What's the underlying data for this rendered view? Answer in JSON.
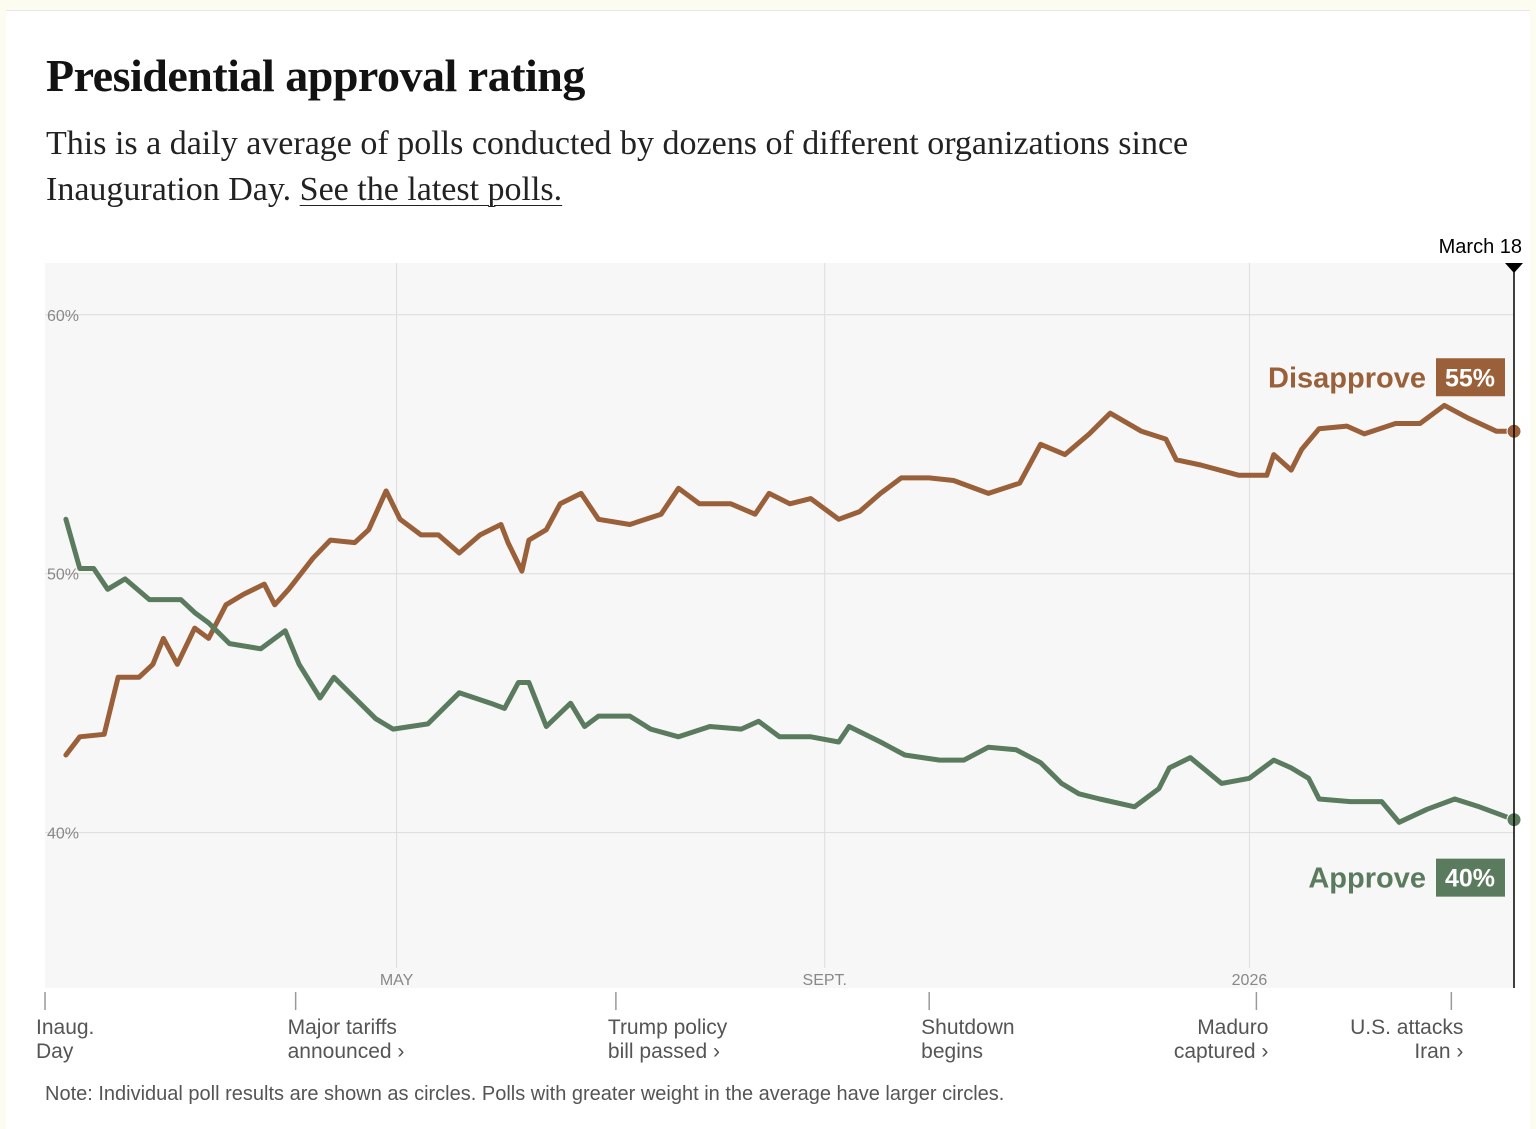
{
  "chart_data": {
    "type": "line",
    "title": "Presidential approval rating",
    "subtitle": "This is a daily average of polls conducted by dozens of different organizations since Inauguration Day.",
    "subtitle_link": "See the latest polls.",
    "note": "Note: Individual poll results are shown as circles. Polls with greater weight in the average have larger circles.",
    "xlim": [
      0,
      422
    ],
    "xticks": [
      {
        "value": 101,
        "label": "MAY"
      },
      {
        "value": 224,
        "label": "SEPT."
      },
      {
        "value": 346,
        "label": "2026"
      }
    ],
    "ylim": [
      34,
      62
    ],
    "yticks": [
      {
        "value": 40,
        "label": "40%"
      },
      {
        "value": 50,
        "label": "50%"
      },
      {
        "value": 60,
        "label": "60%"
      }
    ],
    "grid": true,
    "cursor": {
      "x": 422,
      "label": "March 18"
    },
    "annotations": [
      {
        "x": 0,
        "label": [
          "Inaug.",
          "Day"
        ]
      },
      {
        "x": 72,
        "label": [
          "Major tariffs",
          "announced ›"
        ]
      },
      {
        "x": 164,
        "label": [
          "Trump policy",
          "bill passed ›"
        ]
      },
      {
        "x": 254,
        "label": [
          "Shutdown",
          "begins"
        ]
      },
      {
        "x": 348,
        "label": [
          "Maduro",
          "captured ›"
        ]
      },
      {
        "x": 404,
        "label": [
          "U.S. attacks",
          "Iran ›"
        ]
      }
    ],
    "series": [
      {
        "name": "Disapprove",
        "color": "#99603a",
        "end_label": {
          "value": 55,
          "label": "55%"
        },
        "x": [
          6,
          10,
          17,
          21,
          27,
          31,
          34,
          38,
          43,
          47,
          52,
          57,
          63,
          66,
          70,
          77,
          82,
          89,
          93,
          98,
          102,
          108,
          113,
          119,
          125,
          131,
          133,
          137,
          139,
          144,
          148,
          154,
          159,
          168,
          177,
          182,
          188,
          197,
          204,
          208,
          214,
          220,
          228,
          234,
          240,
          246,
          254,
          261,
          271,
          280,
          286,
          293,
          300,
          306,
          315,
          322,
          325,
          332,
          343,
          351,
          353,
          358,
          361,
          366,
          374,
          379,
          388,
          395,
          402,
          409,
          417,
          422
        ],
        "values": [
          43.0,
          43.7,
          43.8,
          46.0,
          46.0,
          46.5,
          47.5,
          46.5,
          47.9,
          47.5,
          48.8,
          49.2,
          49.6,
          48.8,
          49.4,
          50.6,
          51.3,
          51.2,
          51.7,
          53.2,
          52.1,
          51.5,
          51.5,
          50.8,
          51.5,
          51.9,
          51.2,
          50.1,
          51.3,
          51.7,
          52.7,
          53.1,
          52.1,
          51.9,
          52.3,
          53.3,
          52.7,
          52.7,
          52.3,
          53.1,
          52.7,
          52.9,
          52.1,
          52.4,
          53.1,
          53.7,
          53.7,
          53.6,
          53.1,
          53.5,
          55.0,
          54.6,
          55.4,
          56.2,
          55.5,
          55.2,
          54.4,
          54.2,
          53.8,
          53.8,
          54.6,
          54.0,
          54.8,
          55.6,
          55.7,
          55.4,
          55.8,
          55.8,
          56.5,
          56.0,
          55.5,
          55.5
        ]
      },
      {
        "name": "Approve",
        "color": "#5b7b5f",
        "end_label": {
          "value": 40,
          "label": "40%"
        },
        "x": [
          6,
          10,
          14,
          18,
          23,
          30,
          39,
          43,
          47,
          53,
          62,
          69,
          73,
          79,
          83,
          89,
          95,
          100,
          110,
          119,
          128,
          132,
          136,
          139,
          144,
          151,
          155,
          159,
          168,
          174,
          182,
          191,
          200,
          205,
          211,
          220,
          228,
          231,
          240,
          247,
          257,
          264,
          271,
          279,
          286,
          292,
          297,
          303,
          313,
          320,
          323,
          329,
          338,
          346,
          353,
          358,
          363,
          366,
          375,
          384,
          389,
          397,
          405,
          412,
          422
        ],
        "values": [
          52.1,
          50.2,
          50.2,
          49.4,
          49.8,
          49.0,
          49.0,
          48.5,
          48.1,
          47.3,
          47.1,
          47.8,
          46.5,
          45.2,
          46.0,
          45.2,
          44.4,
          44.0,
          44.2,
          45.4,
          45.0,
          44.8,
          45.8,
          45.8,
          44.1,
          45.0,
          44.1,
          44.5,
          44.5,
          44.0,
          43.7,
          44.1,
          44.0,
          44.3,
          43.7,
          43.7,
          43.5,
          44.1,
          43.5,
          43.0,
          42.8,
          42.8,
          43.3,
          43.2,
          42.7,
          41.9,
          41.5,
          41.3,
          41.0,
          41.7,
          42.5,
          42.9,
          41.9,
          42.1,
          42.8,
          42.5,
          42.1,
          41.3,
          41.2,
          41.2,
          40.4,
          40.9,
          41.3,
          41.0,
          40.5
        ]
      }
    ]
  }
}
